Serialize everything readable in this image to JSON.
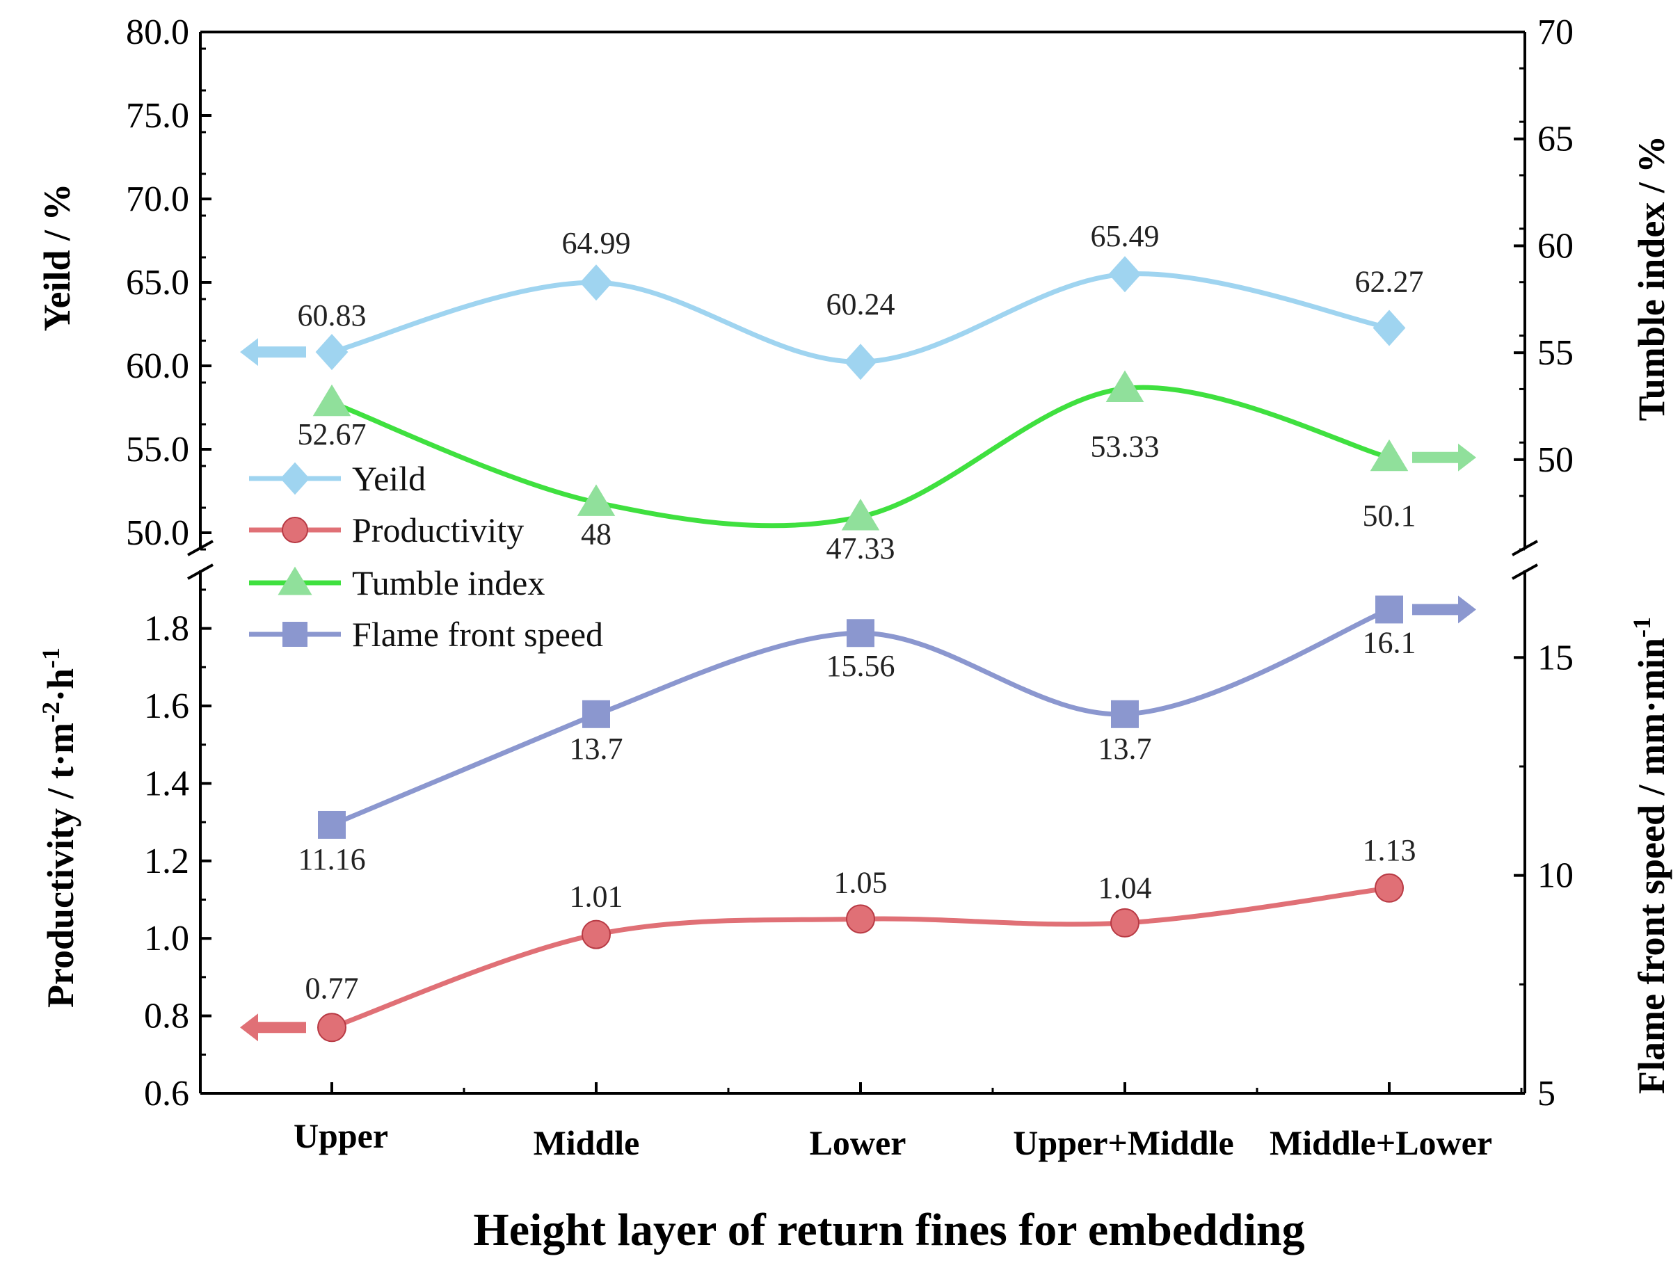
{
  "chart_data": {
    "type": "line",
    "xlabel": "Height layer of return fines for embedding",
    "categories": [
      "Upper",
      "Middle",
      "Lower",
      "Upper+Middle",
      "Middle+Lower"
    ],
    "top_panel": {
      "left_axis": {
        "label": "Yeild / %",
        "ylim": [
          49.0,
          80.0
        ],
        "ticks": [
          "50.0",
          "55.0",
          "60.0",
          "65.0",
          "70.0",
          "75.0",
          "80.0"
        ]
      },
      "right_axis": {
        "label": "Tumble index / %",
        "ylim": [
          45.8,
          70.0
        ],
        "ticks": [
          "50",
          "55",
          "60",
          "65",
          "70"
        ]
      }
    },
    "bottom_panel": {
      "left_axis": {
        "label": "Productivity / t·m-2·h-1",
        "label_parts": {
          "main": "Productivity / t·m",
          "sup1": "-2",
          "mid": "·h",
          "sup2": "-1"
        },
        "ylim": [
          0.6,
          1.95
        ],
        "ticks": [
          "0.6",
          "0.8",
          "1.0",
          "1.2",
          "1.4",
          "1.6",
          "1.8"
        ]
      },
      "right_axis": {
        "label": "Flame front speed / mm·min-1",
        "label_parts": {
          "main": "Flame front speed / mm·min",
          "sup": "-1"
        },
        "ylim": [
          5,
          17
        ],
        "ticks": [
          "5",
          "10",
          "15"
        ]
      }
    },
    "series": [
      {
        "name": "Yeild",
        "panel": "top",
        "axis": "left",
        "marker": "diamond",
        "color": "#9fd4f0",
        "values": [
          60.83,
          64.99,
          60.24,
          65.49,
          62.27
        ],
        "labels": [
          "60.83",
          "64.99",
          "60.24",
          "65.49",
          "62.27"
        ]
      },
      {
        "name": "Productivity",
        "panel": "bottom",
        "axis": "left",
        "marker": "circle",
        "color": "#e07076",
        "values": [
          0.77,
          1.01,
          1.05,
          1.04,
          1.13
        ],
        "labels": [
          "0.77",
          "1.01",
          "1.05",
          "1.04",
          "1.13"
        ]
      },
      {
        "name": "Tumble index",
        "panel": "top",
        "axis": "right",
        "marker": "triangle",
        "color": "#43e043",
        "values": [
          52.67,
          48,
          47.33,
          53.33,
          50.1
        ],
        "labels": [
          "52.67",
          "48",
          "47.33",
          "53.33",
          "50.1"
        ]
      },
      {
        "name": "Flame front speed",
        "panel": "bottom",
        "axis": "right",
        "marker": "square",
        "color": "#8b97cf",
        "values": [
          11.16,
          13.7,
          15.56,
          13.7,
          16.1
        ],
        "labels": [
          "11.16",
          "13.7",
          "15.56",
          "13.7",
          "16.1"
        ]
      }
    ],
    "legend": [
      "Yeild",
      "Productivity",
      "Tumble index",
      "Flame front speed"
    ]
  }
}
